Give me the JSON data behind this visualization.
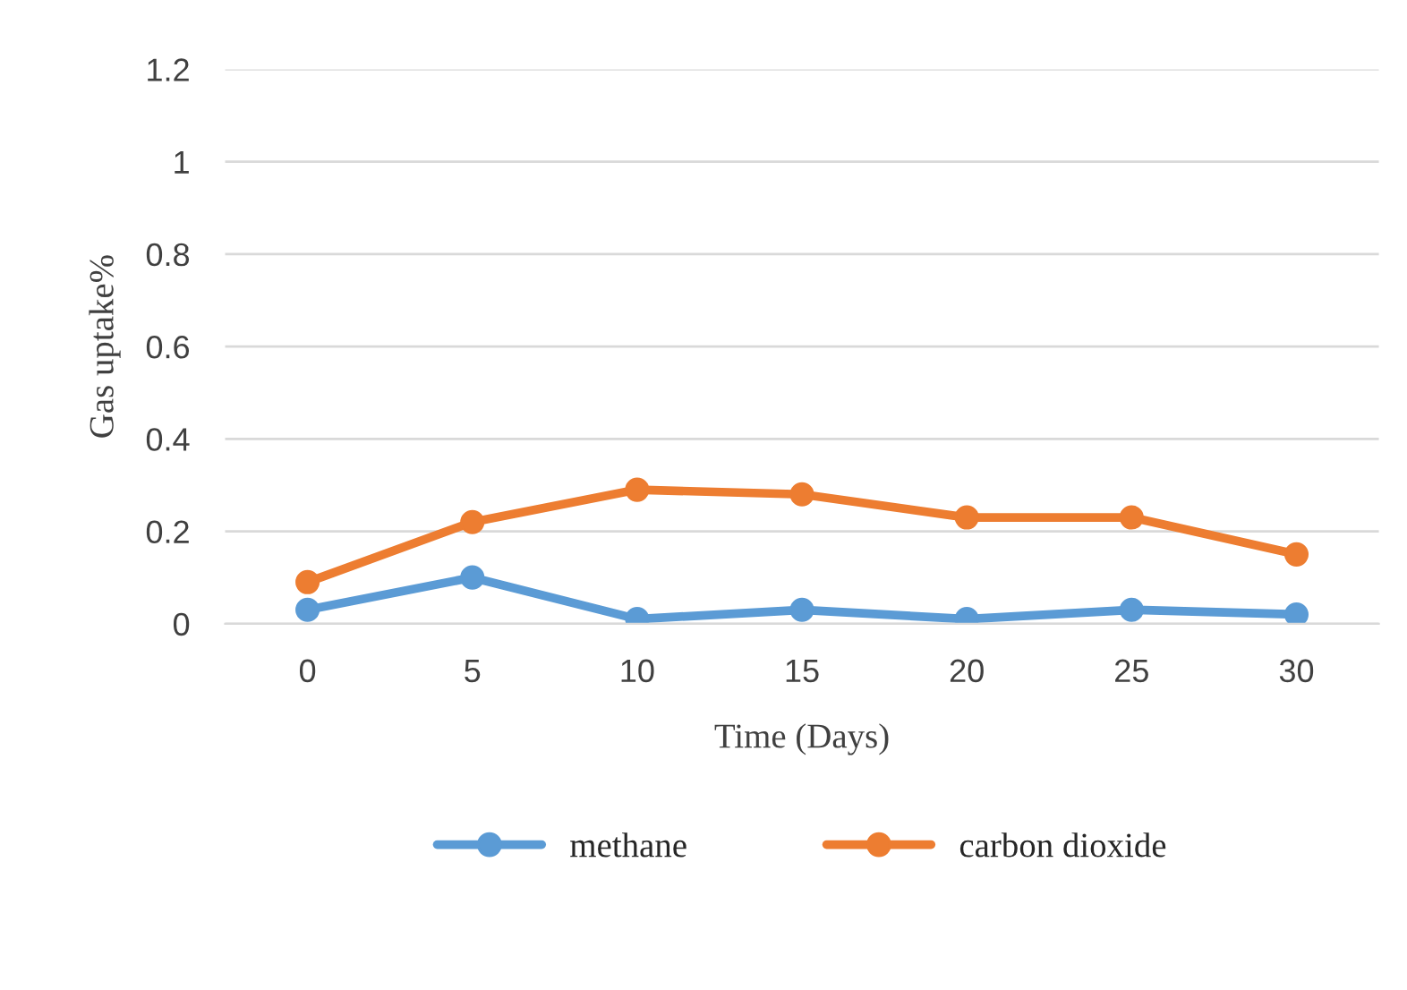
{
  "chart_data": {
    "type": "line",
    "xlabel": "Time (Days)",
    "ylabel": "Gas uptake%",
    "categories": [
      "0",
      "5",
      "10",
      "15",
      "20",
      "25",
      "30"
    ],
    "series": [
      {
        "name": "methane",
        "color": "#5b9bd5",
        "values": [
          0.03,
          0.1,
          0.01,
          0.03,
          0.01,
          0.03,
          0.02
        ]
      },
      {
        "name": "carbon dioxide",
        "color": "#ed7d31",
        "values": [
          0.09,
          0.22,
          0.29,
          0.28,
          0.23,
          0.23,
          0.15
        ]
      }
    ],
    "ylim": [
      0,
      1.2
    ],
    "yticks": [
      0,
      0.2,
      0.4,
      0.6,
      0.8,
      1,
      1.2
    ],
    "grid": "y",
    "legend": "bottom",
    "marker": "circle",
    "line_style": "solid"
  }
}
